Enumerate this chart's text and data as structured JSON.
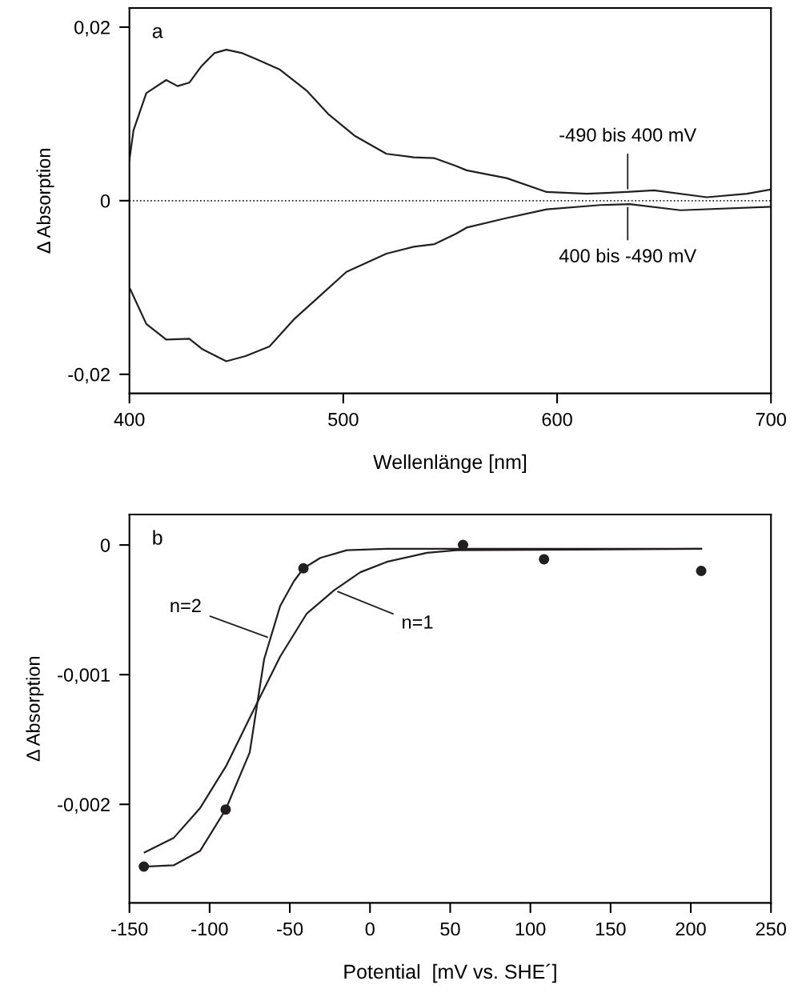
{
  "chart_data": [
    {
      "type": "line",
      "xlabel": "Wellenlänge [nm]",
      "ylabel": "Δ Absorption",
      "xlim": [
        400,
        700
      ],
      "xticks": [
        400,
        500,
        600,
        700
      ],
      "ylim": [
        -0.0222,
        0.0222
      ],
      "yticks": [
        {
          "value": 0.02,
          "label": "0,02"
        },
        0,
        {
          "value": -0.02,
          "label": "-0,02"
        }
      ],
      "grid": false,
      "legend": false,
      "marker": "none",
      "line_style": "solid",
      "series": [
        {
          "color": "#231f20",
          "x": [
            400,
            401.9,
            407.9,
            417.2,
            422.5,
            428,
            433.7,
            439.7,
            445.3,
            452.8,
            460.3,
            470.4,
            482.8,
            492.9,
            505.2,
            520.2,
            532.9,
            542.7,
            552.8,
            557.7,
            576.4,
            595.1,
            613.9,
            632.6,
            645.3,
            670,
            688.8,
            700
          ],
          "values": [
            0.0047,
            0.0081,
            0.0124,
            0.0139,
            0.0132,
            0.0136,
            0.0155,
            0.017,
            0.0174,
            0.017,
            0.0162,
            0.0151,
            0.0127,
            0.01,
            0.0075,
            0.0054,
            0.005,
            0.0049,
            0.004,
            0.0035,
            0.0026,
            0.001,
            0.0008,
            0.001,
            0.0012,
            0.0004,
            0.0008,
            0.0013
          ]
        },
        {
          "color": "#231f20",
          "x": [
            400.4,
            407.9,
            417.2,
            428,
            434.1,
            445.3,
            454.3,
            465.5,
            476.8,
            488,
            501.5,
            520.2,
            532.9,
            542.7,
            552.8,
            557.7,
            576.4,
            595.1,
            620.2,
            634,
            657.7,
            700
          ],
          "values": [
            -0.0102,
            -0.0142,
            -0.016,
            -0.0159,
            -0.0171,
            -0.0185,
            -0.0179,
            -0.0168,
            -0.0137,
            -0.0112,
            -0.0082,
            -0.0061,
            -0.0053,
            -0.005,
            -0.0038,
            -0.0031,
            -0.002,
            -0.001,
            -0.0005,
            -0.0004,
            -0.0011,
            -0.0007
          ]
        }
      ],
      "ref_lines": [
        {
          "axis": "y",
          "value": 0,
          "line_style": "dotted",
          "color": "#231f20"
        }
      ],
      "annotations": [
        "a",
        {
          "text": "-490 bis 400 mV",
          "x": 633,
          "y": 0.001
        },
        {
          "text": "400 bis -490 mV",
          "x": 633,
          "y": -0.0004
        }
      ]
    },
    {
      "type": "scatter",
      "xlabel": "Potential  [mV vs. SHE´]",
      "ylabel": "Δ Absorption",
      "xlim": [
        -150,
        250
      ],
      "xticks": [
        -150,
        -100,
        -50,
        0,
        50,
        100,
        150,
        200,
        250
      ],
      "ylim": [
        -0.00276,
        0.000235
      ],
      "yticks": [
        0,
        {
          "value": -0.001,
          "label": "-0,001"
        },
        {
          "value": -0.002,
          "label": "-0,002"
        }
      ],
      "grid": false,
      "legend": false,
      "marker": "circle",
      "x": [
        -141,
        -90,
        -41.5,
        58,
        108.5,
        206.5
      ],
      "values": [
        -0.00248,
        -0.00204,
        -0.00018,
        0,
        -0.00011,
        -0.0002
      ],
      "color": "#231f20",
      "series": [
        {
          "type": "line",
          "marker": "none",
          "color": "#231f20",
          "x": [
            -141,
            -122.5,
            -106,
            -90,
            -75,
            -66,
            -56,
            -47.5,
            -41.5,
            -31,
            -14.5,
            10.5,
            206.5
          ],
          "values": [
            -0.00248,
            -0.00247,
            -0.00236,
            -0.00204,
            -0.0016,
            -0.00088,
            -0.00047,
            -0.00028,
            -0.00018,
            -0.0001,
            -4e-05,
            -3e-05,
            -3e-05
          ]
        },
        {
          "type": "line",
          "marker": "none",
          "color": "#231f20",
          "x": [
            -140.5,
            -122.5,
            -106,
            -89.5,
            -72.5,
            -56,
            -39.5,
            -22.5,
            -6,
            10.5,
            35.5,
            54,
            206.5
          ],
          "values": [
            -0.00237,
            -0.00226,
            -0.00203,
            -0.0017,
            -0.00127,
            -0.00086,
            -0.00053,
            -0.00035,
            -0.00021,
            -0.00013,
            -6e-05,
            -4e-05,
            -3e-05
          ]
        }
      ],
      "annotations": [
        "b",
        {
          "text": "n=2",
          "x": -62,
          "y": -0.00072
        },
        {
          "text": "n=1",
          "x": -22,
          "y": -0.00035
        }
      ]
    }
  ]
}
